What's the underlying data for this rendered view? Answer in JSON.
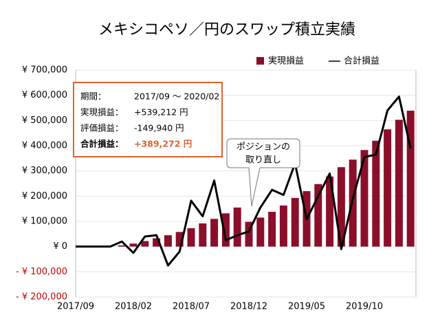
{
  "chart_data": {
    "type": "bar_line",
    "title": "メキシコペソ／円のスワップ積立実績",
    "categories": [
      "2017/09",
      null,
      null,
      null,
      null,
      "2018/02",
      null,
      null,
      null,
      null,
      "2018/07",
      null,
      null,
      null,
      null,
      "2018/12",
      null,
      null,
      null,
      null,
      "2019/05",
      null,
      null,
      null,
      null,
      "2019/10",
      null,
      null,
      null,
      null
    ],
    "series": [
      {
        "name": "実現損益",
        "type": "bar",
        "color": "#8b0f2a",
        "values": [
          0,
          0,
          0,
          0,
          5000,
          12000,
          22000,
          33000,
          45000,
          58000,
          73000,
          92000,
          110000,
          132000,
          155000,
          98000,
          115000,
          138000,
          163000,
          193000,
          220000,
          248000,
          278000,
          315000,
          345000,
          383000,
          420000,
          465000,
          503000,
          539212
        ]
      },
      {
        "name": "合計損益",
        "type": "line",
        "color": "#000000",
        "values": [
          0,
          0,
          0,
          0,
          20000,
          -25000,
          40000,
          45000,
          -75000,
          -20000,
          182000,
          120000,
          262000,
          25000,
          45000,
          60000,
          155000,
          225000,
          205000,
          330000,
          108000,
          200000,
          290000,
          -10000,
          190000,
          355000,
          365000,
          540000,
          595000,
          389272
        ]
      }
    ],
    "ylim": [
      -200000,
      700000
    ],
    "yticks": [
      {
        "value": -200000,
        "label": "- ¥ 200,000"
      },
      {
        "value": -100000,
        "label": "- ¥ 100,000"
      },
      {
        "value": 0,
        "label": "¥ 0"
      },
      {
        "value": 100000,
        "label": "¥ 100,000"
      },
      {
        "value": 200000,
        "label": "¥ 200,000"
      },
      {
        "value": 300000,
        "label": "¥ 300,000"
      },
      {
        "value": 400000,
        "label": "¥ 400,000"
      },
      {
        "value": 500000,
        "label": "¥ 500,000"
      },
      {
        "value": 600000,
        "label": "¥ 600,000"
      },
      {
        "value": 700000,
        "label": "¥ 700,000"
      }
    ],
    "grid": true,
    "legend": "top-right",
    "info": [
      {
        "label": "期間：",
        "value": "2017/09 〜 2020/02"
      },
      {
        "label": "実現損益：",
        "value": "+539,212 円"
      },
      {
        "label": "評価損益：",
        "value": "-149,940 円"
      },
      {
        "label": "合計損益：",
        "value": "+389,272 円"
      }
    ],
    "annotation": [
      "ポジションの",
      "取り直し"
    ]
  }
}
